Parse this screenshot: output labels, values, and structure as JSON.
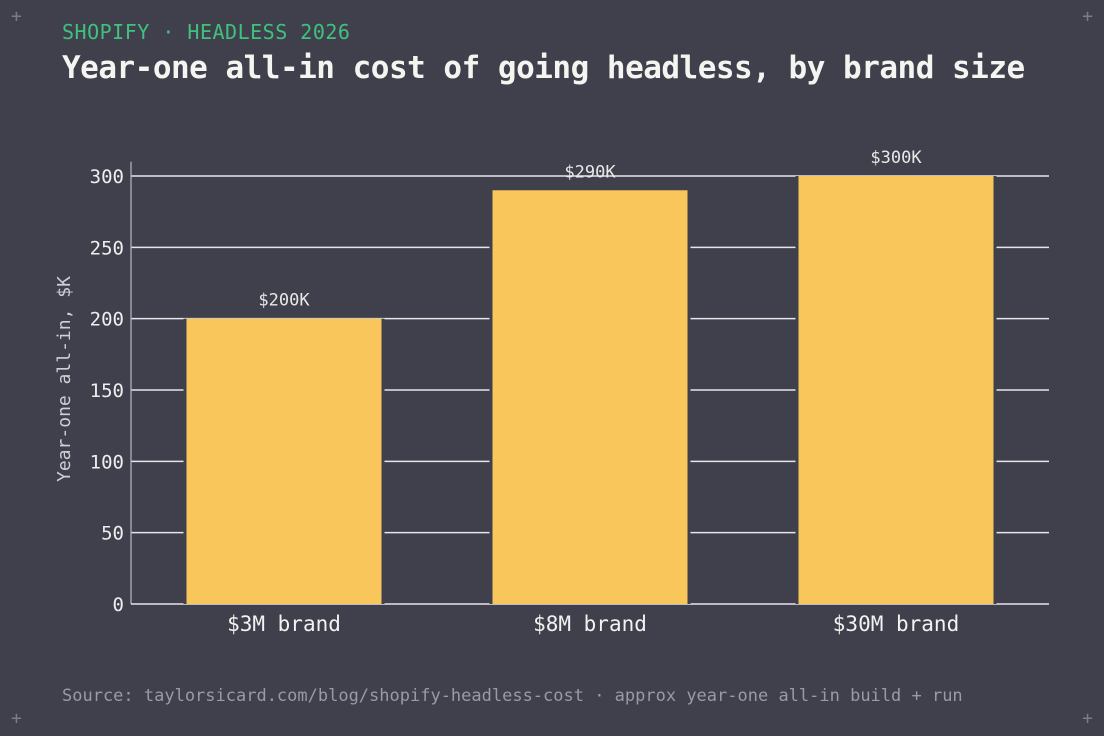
{
  "header": {
    "kicker": "SHOPIFY · HEADLESS 2026",
    "title": "Year-one all-in cost of going headless, by brand size"
  },
  "footer": {
    "source": "Source: taylorsicard.com/blog/shopify-headless-cost · approx year-one all-in build + run"
  },
  "decorations": {
    "corner_glyph": "+"
  },
  "colors": {
    "background": "#40404c",
    "bar": "#f8c65a",
    "grid": "#e6e6ea",
    "kicker": "#3ec27e"
  },
  "chart_data": {
    "type": "bar",
    "categories": [
      "$3M brand",
      "$8M brand",
      "$30M brand"
    ],
    "values": [
      200,
      290,
      300
    ],
    "data_labels": [
      "$200K",
      "$290K",
      "$300K"
    ],
    "ylabel": "Year-one all-in, $K",
    "xlabel": "",
    "ylim": [
      0,
      310
    ],
    "yticks": [
      0,
      50,
      100,
      150,
      200,
      250,
      300
    ],
    "grid": "horizontal",
    "legend": "none"
  }
}
